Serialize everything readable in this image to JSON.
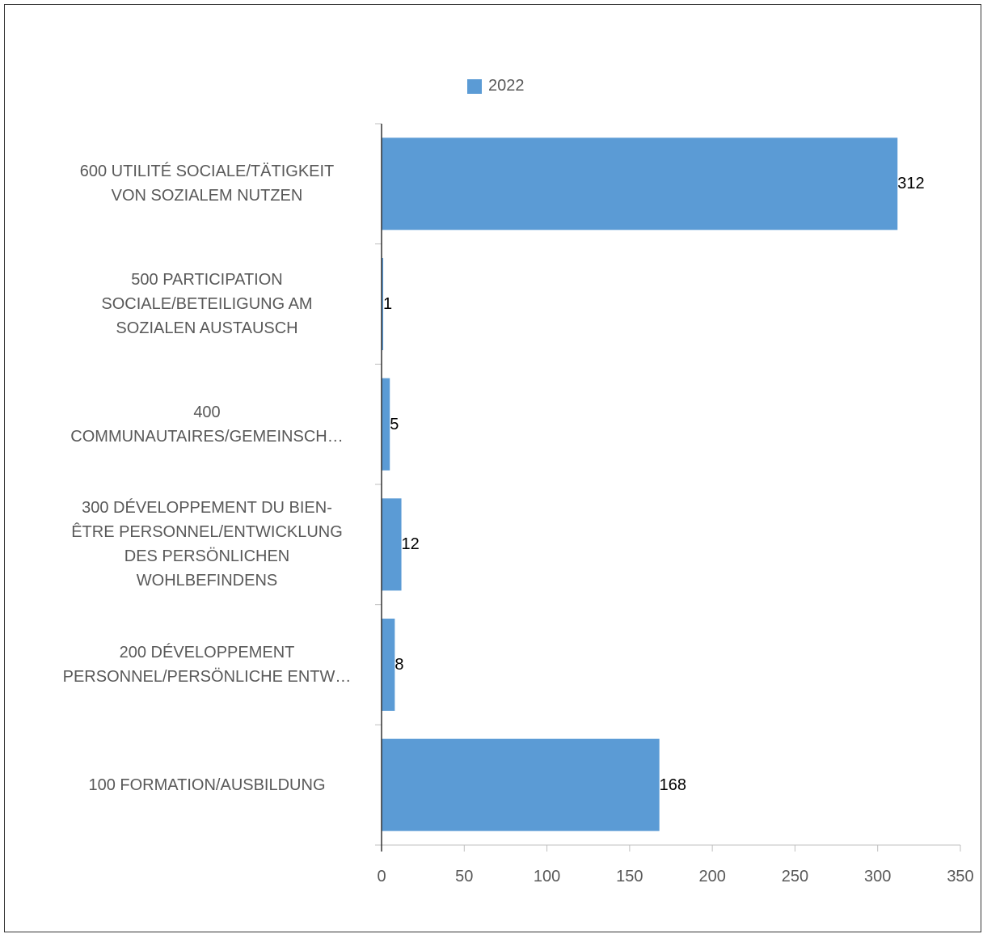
{
  "chart_data": {
    "type": "bar",
    "orientation": "horizontal",
    "categories": [
      [
        "600 UTILITÉ SOCIALE/TÄTIGKEIT",
        "VON SOZIALEM NUTZEN"
      ],
      [
        "500 PARTICIPATION",
        "SOCIALE/BETEILIGUNG AM",
        "SOZIALEN AUSTAUSCH"
      ],
      [
        "400",
        "COMMUNAUTAIRES/GEMEINSCH…"
      ],
      [
        "300 DÉVELOPPEMENT DU BIEN-",
        "ÊTRE PERSONNEL/ENTWICKLUNG",
        "DES PERSÖNLICHEN",
        "WOHLBEFINDENS"
      ],
      [
        "200 DÉVELOPPEMENT",
        "PERSONNEL/PERSÖNLICHE ENTW…"
      ],
      [
        "100 FORMATION/AUSBILDUNG"
      ]
    ],
    "series": [
      {
        "name": "2022",
        "values": [
          312,
          1,
          5,
          12,
          8,
          168
        ],
        "color": "#5b9bd5"
      }
    ],
    "data_labels": [
      "312",
      "1",
      "5",
      "12",
      "8",
      "168"
    ],
    "xlim": [
      0,
      350
    ],
    "x_ticks": [
      "0",
      "50",
      "100",
      "150",
      "200",
      "250",
      "300",
      "350"
    ],
    "legend_position": "top",
    "grid": false
  },
  "colors": {
    "bar": "#5b9bd5",
    "axis": "#bfbfbf",
    "text": "#595959"
  }
}
